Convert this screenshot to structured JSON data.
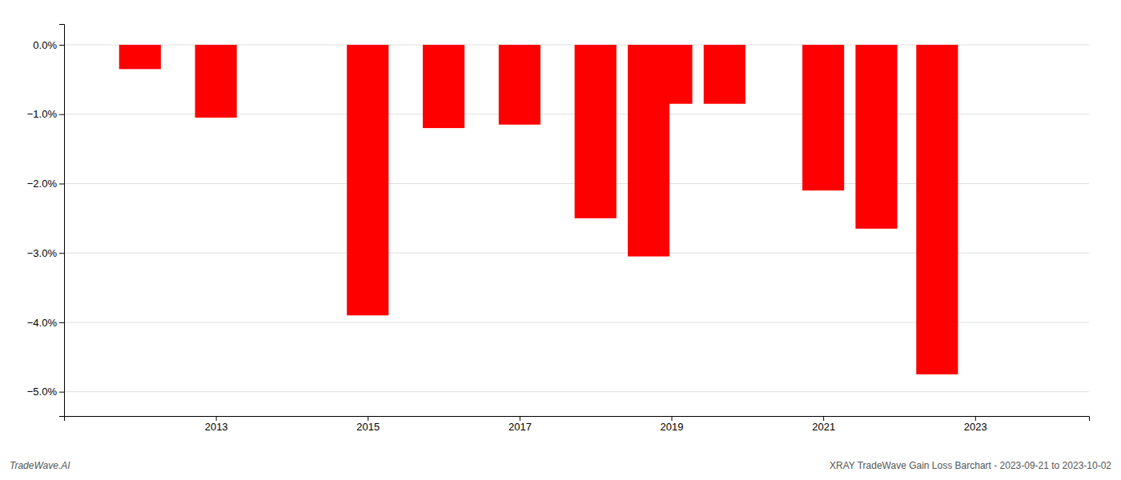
{
  "chart_data": {
    "type": "bar",
    "x": [
      2012,
      2013,
      2015,
      2016,
      2017,
      2018,
      2018.7,
      2019,
      2019.7,
      2021,
      2021.7,
      2022.5
    ],
    "values": [
      -0.35,
      -1.05,
      -3.9,
      -1.2,
      -1.15,
      -2.5,
      -3.05,
      -0.85,
      -0.85,
      -2.1,
      -2.65,
      -4.75
    ],
    "color": "#ff0000",
    "xlim": [
      2011.0,
      2024.5
    ],
    "xticks": [
      2013,
      2015,
      2017,
      2019,
      2021,
      2023
    ],
    "ylim": [
      -5.35,
      0.3
    ],
    "yticks": [
      {
        "value": 0.0,
        "label": "0.0%"
      },
      {
        "value": -1.0,
        "label": "−1.0%"
      },
      {
        "value": -2.0,
        "label": "−2.0%"
      },
      {
        "value": -3.0,
        "label": "−3.0%"
      },
      {
        "value": -4.0,
        "label": "−4.0%"
      },
      {
        "value": -5.0,
        "label": "−5.0%"
      }
    ],
    "grid": true,
    "annotations": [
      "TradeWave.AI",
      "XRAY TradeWave Gain Loss Barchart - 2023-09-21 to 2023-10-02"
    ]
  }
}
